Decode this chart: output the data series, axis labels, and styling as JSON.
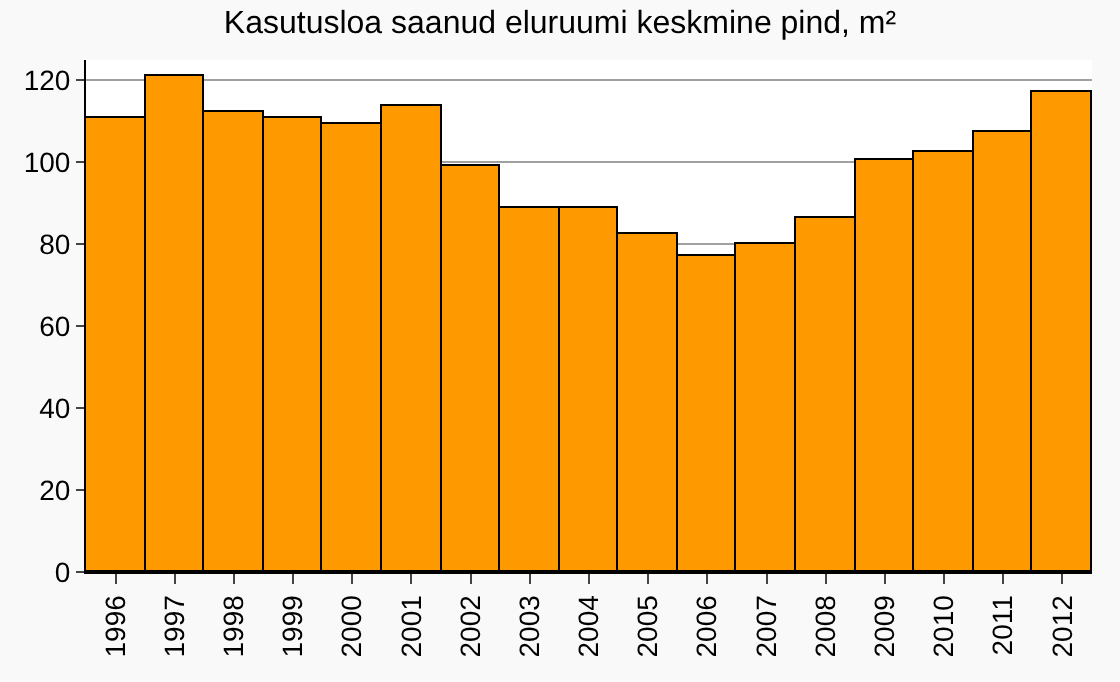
{
  "chart_data": {
    "type": "bar",
    "title": "Kasutusloa saanud eluruumi keskmine pind, m²",
    "categories": [
      "1996",
      "1997",
      "1998",
      "1999",
      "2000",
      "2001",
      "2002",
      "2003",
      "2004",
      "2005",
      "2006",
      "2007",
      "2008",
      "2009",
      "2010",
      "2011",
      "2012"
    ],
    "values": [
      110.7,
      121.2,
      112.3,
      111.0,
      109.6,
      113.9,
      99.2,
      89.0,
      89.0,
      82.6,
      77.1,
      80.0,
      86.3,
      100.7,
      102.4,
      107.4,
      117.2
    ],
    "color": "#ff9900",
    "ylim": [
      0,
      125
    ],
    "yticks": [
      0,
      20,
      40,
      60,
      80,
      100,
      120
    ],
    "grid": "y"
  }
}
